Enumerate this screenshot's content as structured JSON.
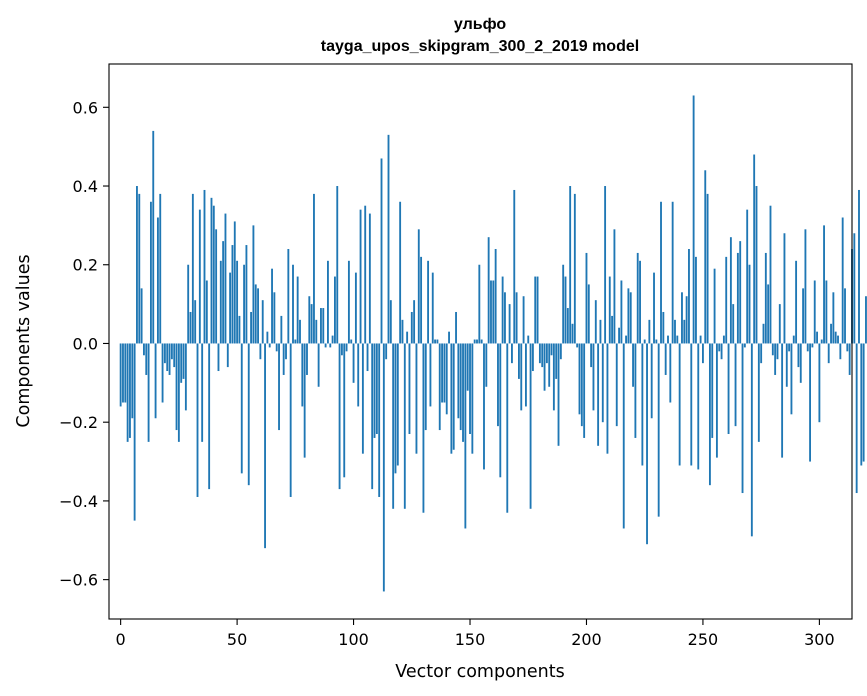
{
  "chart_data": {
    "type": "bar",
    "title_line1": "ульфо",
    "title_line2": "tayga_upos_skipgram_300_2_2019 model",
    "xlabel": "Vector components",
    "ylabel": "Components values",
    "xlim": [
      -5,
      314
    ],
    "ylim": [
      -0.7,
      0.71
    ],
    "xticks": [
      0,
      50,
      100,
      150,
      200,
      250,
      300
    ],
    "xtick_labels": [
      "0",
      "50",
      "100",
      "150",
      "200",
      "250",
      "300"
    ],
    "yticks": [
      -0.6,
      -0.4,
      -0.2,
      0.0,
      0.2,
      0.4,
      0.6
    ],
    "ytick_labels": [
      "−0.6",
      "−0.4",
      "−0.2",
      "0.0",
      "0.2",
      "0.4",
      "0.6"
    ],
    "bar_color": "#1f77b4",
    "values": [
      -0.16,
      -0.15,
      -0.15,
      -0.25,
      -0.24,
      -0.19,
      -0.45,
      0.4,
      0.38,
      0.14,
      -0.03,
      -0.08,
      -0.25,
      0.36,
      0.54,
      -0.19,
      0.32,
      0.38,
      -0.15,
      -0.05,
      -0.07,
      -0.08,
      -0.04,
      -0.06,
      -0.22,
      -0.25,
      -0.1,
      -0.09,
      -0.17,
      0.2,
      0.08,
      0.38,
      0.11,
      -0.39,
      0.34,
      -0.25,
      0.39,
      0.16,
      -0.37,
      0.37,
      0.35,
      0.29,
      -0.07,
      0.21,
      0.26,
      0.33,
      -0.06,
      0.18,
      0.25,
      0.31,
      0.21,
      0.07,
      -0.33,
      0.2,
      0.25,
      -0.36,
      0.08,
      0.3,
      0.15,
      0.14,
      -0.04,
      0.11,
      -0.52,
      0.03,
      -0.01,
      0.19,
      0.13,
      -0.02,
      -0.22,
      0.07,
      -0.08,
      -0.04,
      0.24,
      -0.39,
      0.2,
      0.01,
      0.17,
      0.06,
      -0.16,
      -0.29,
      -0.08,
      0.12,
      0.1,
      0.38,
      0.06,
      -0.11,
      0.09,
      0.09,
      -0.01,
      0.21,
      -0.01,
      0.02,
      0.17,
      0.4,
      -0.37,
      -0.03,
      -0.34,
      -0.02,
      0.21,
      0.01,
      -0.1,
      0.18,
      -0.16,
      0.34,
      -0.28,
      0.35,
      -0.07,
      0.33,
      -0.37,
      -0.24,
      -0.23,
      -0.39,
      0.47,
      -0.63,
      -0.04,
      0.53,
      0.11,
      -0.42,
      -0.33,
      -0.31,
      0.36,
      0.06,
      -0.42,
      0.03,
      -0.23,
      0.08,
      0.11,
      -0.28,
      0.29,
      0.22,
      -0.43,
      -0.22,
      0.21,
      -0.16,
      0.18,
      0.01,
      0.01,
      -0.22,
      -0.15,
      -0.15,
      -0.18,
      0.03,
      -0.28,
      -0.27,
      0.08,
      -0.19,
      -0.22,
      -0.25,
      -0.47,
      -0.12,
      -0.23,
      -0.28,
      0.01,
      0.01,
      0.2,
      0.01,
      -0.32,
      -0.11,
      0.27,
      0.16,
      0.16,
      0.24,
      -0.21,
      -0.34,
      0.17,
      0.13,
      -0.43,
      0.1,
      -0.05,
      0.39,
      0.13,
      -0.09,
      -0.17,
      0.12,
      -0.16,
      0.02,
      -0.42,
      -0.07,
      0.17,
      0.17,
      -0.05,
      -0.06,
      -0.12,
      -0.05,
      -0.11,
      -0.03,
      -0.17,
      -0.09,
      -0.26,
      -0.04,
      0.2,
      0.17,
      0.09,
      0.4,
      0.05,
      0.38,
      -0.01,
      -0.18,
      -0.21,
      -0.24,
      0.23,
      0.15,
      -0.06,
      -0.17,
      0.11,
      -0.26,
      0.06,
      -0.2,
      0.4,
      -0.28,
      0.17,
      0.07,
      0.29,
      -0.21,
      0.04,
      0.16,
      -0.47,
      0.02,
      0.14,
      0.13,
      -0.11,
      -0.24,
      0.23,
      0.21,
      -0.31,
      0.01,
      -0.51,
      0.06,
      -0.19,
      0.18,
      0.01,
      -0.44,
      0.36,
      0.08,
      -0.08,
      0.02,
      -0.15,
      0.36,
      0.06,
      0.02,
      -0.31,
      0.13,
      0.06,
      0.12,
      0.24,
      -0.31,
      0.63,
      0.22,
      -0.32,
      0.02,
      -0.05,
      0.44,
      0.38,
      -0.36,
      -0.24,
      0.19,
      -0.29,
      -0.02,
      -0.04,
      0.02,
      0.22,
      -0.23,
      0.27,
      0.1,
      -0.21,
      0.23,
      0.26,
      -0.38,
      -0.01,
      0.34,
      0.2,
      -0.49,
      0.48,
      0.4,
      -0.25,
      -0.05,
      0.05,
      0.23,
      0.15,
      0.35,
      -0.03,
      -0.08,
      -0.04,
      0.1,
      -0.29,
      0.28,
      -0.11,
      -0.02,
      -0.18,
      0.02,
      0.21,
      -0.06,
      -0.1,
      0.14,
      0.29,
      -0.02,
      -0.3,
      -0.01,
      0.16,
      0.03,
      -0.2,
      0.01,
      0.3,
      0.16,
      -0.05,
      0.05,
      0.13,
      0.03,
      0.02,
      -0.04,
      0.32,
      0.14,
      -0.02,
      -0.08,
      0.24,
      0.28,
      -0.38,
      0.39,
      -0.31,
      -0.3,
      0.12,
      -0.32
    ]
  }
}
